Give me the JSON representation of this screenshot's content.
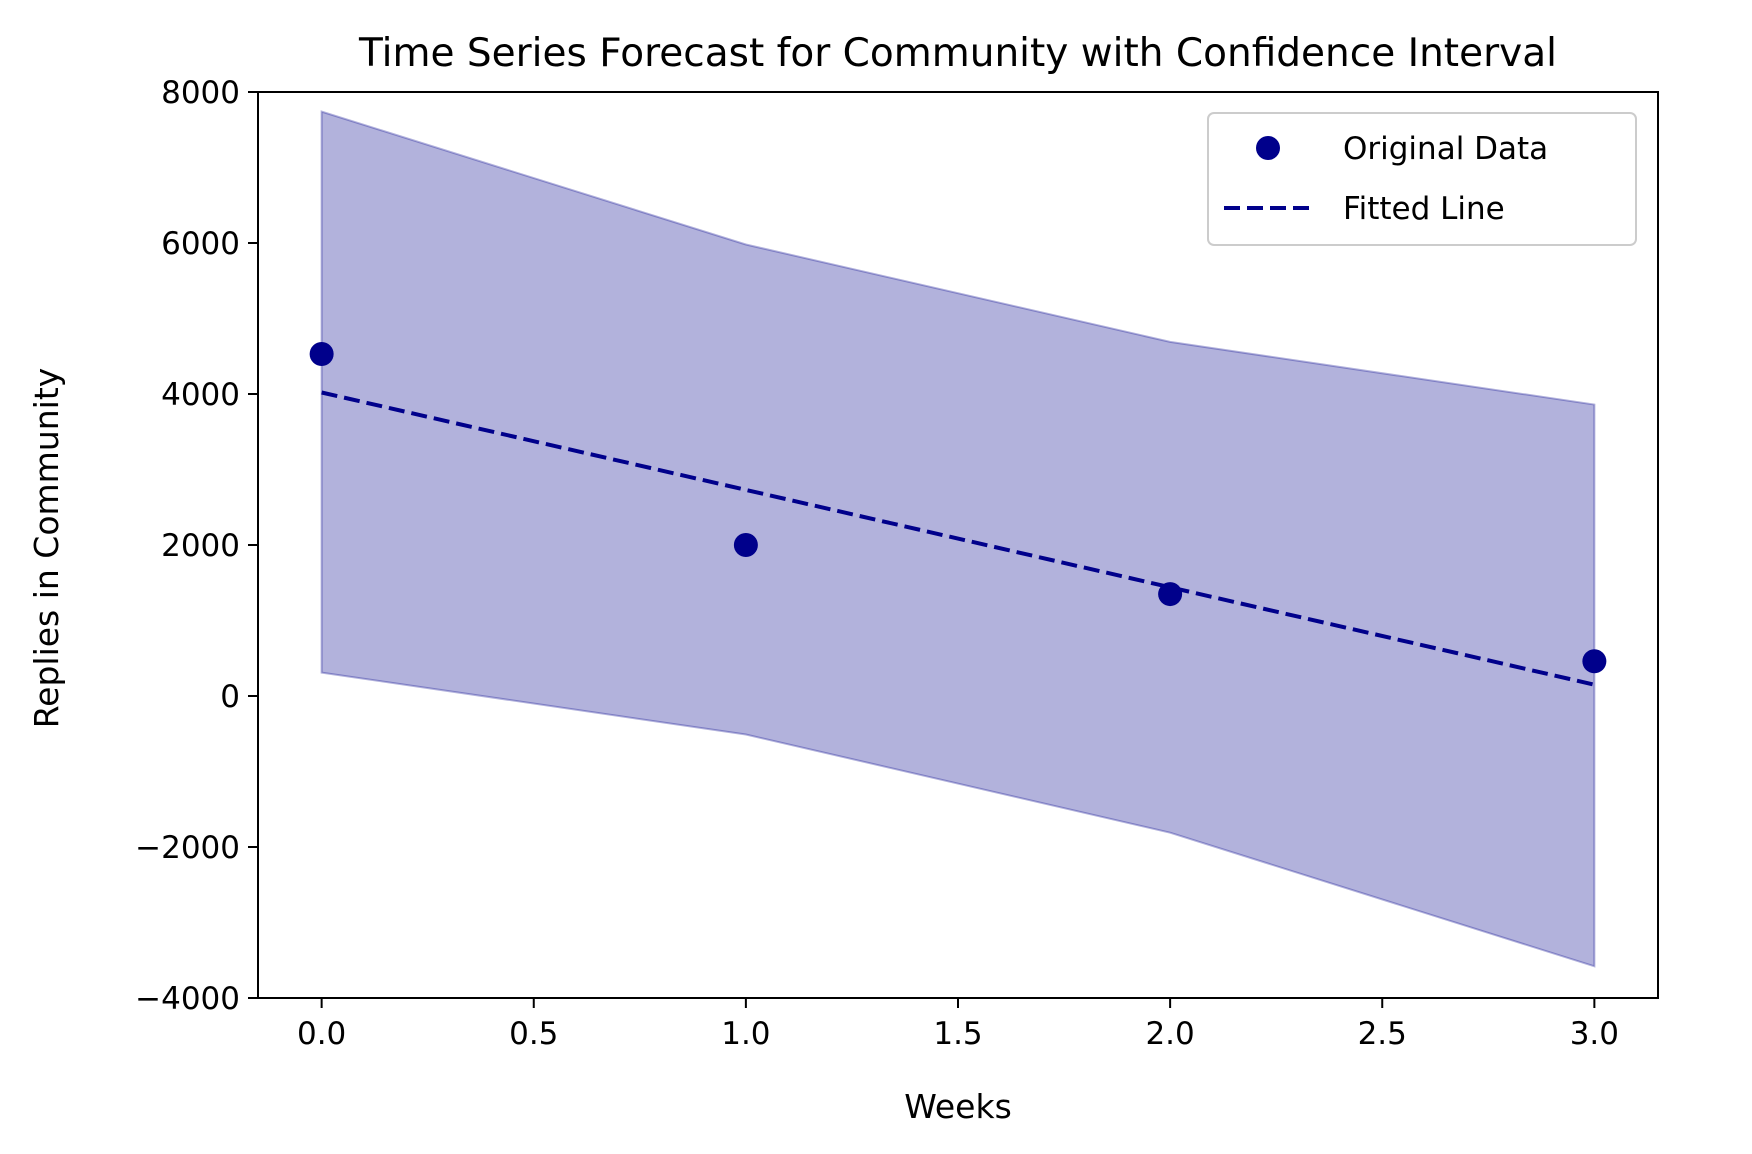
{
  "chart_data": {
    "type": "line",
    "title": "Time Series Forecast for Community with Confidence Interval",
    "xlabel": "Weeks",
    "ylabel": "Replies in Community",
    "xlim": [
      -0.15,
      3.15
    ],
    "ylim": [
      -4000,
      8000
    ],
    "x_ticks": [
      0.0,
      0.5,
      1.0,
      1.5,
      2.0,
      2.5,
      3.0
    ],
    "x_tick_labels": [
      "0.0",
      "0.5",
      "1.0",
      "1.5",
      "2.0",
      "2.5",
      "3.0"
    ],
    "y_ticks": [
      -4000,
      -2000,
      0,
      2000,
      4000,
      6000,
      8000
    ],
    "y_tick_labels": [
      "−4000",
      "−2000",
      "0",
      "2000",
      "4000",
      "6000",
      "8000"
    ],
    "grid": false,
    "legend_position": "top-right",
    "series": [
      {
        "name": "Original Data",
        "kind": "scatter",
        "x": [
          0,
          1,
          2,
          3
        ],
        "y": [
          4530,
          2000,
          1350,
          460
        ],
        "color": "#00008b"
      },
      {
        "name": "Fitted Line",
        "kind": "line",
        "style": "dashed",
        "x": [
          0,
          1,
          2,
          3
        ],
        "y": [
          4020,
          2730,
          1440,
          150
        ],
        "color": "#00008b"
      }
    ],
    "confidence_interval": {
      "x": [
        0,
        1,
        2,
        3
      ],
      "lower": [
        310,
        -510,
        -1810,
        -3580
      ],
      "upper": [
        7740,
        5980,
        4690,
        3860
      ],
      "color": "#00008b"
    }
  }
}
